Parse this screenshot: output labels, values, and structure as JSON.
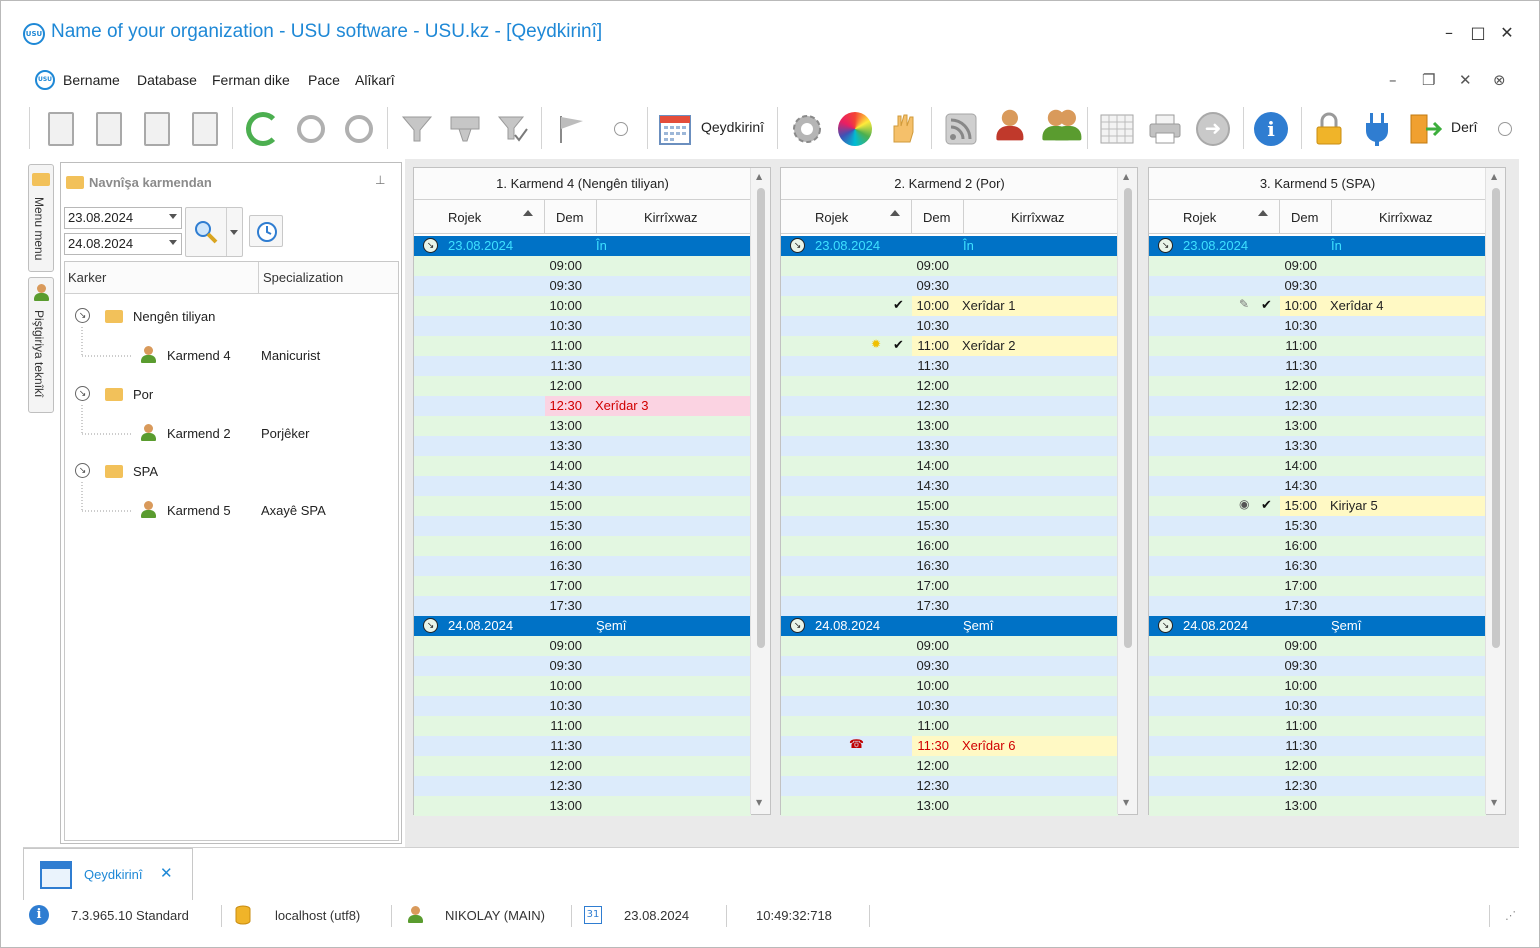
{
  "window": {
    "title": "Name of your organization - USU software - USU.kz - [Qeydkirinî]",
    "logo_text": "USU",
    "controls": [
      "–",
      "□",
      "✕"
    ]
  },
  "menu": {
    "items": [
      "Bername",
      "Database",
      "Ferman dike",
      "Pace",
      "Alîkarî"
    ],
    "mdi_controls": [
      "–",
      "❐",
      "✕",
      "⊗"
    ]
  },
  "toolbar": {
    "calendar_label": "Qeydkirinî",
    "exit_label": "Derî"
  },
  "side_tabs": [
    "Menu menu",
    "Piştgiriya teknîkî"
  ],
  "employee_panel": {
    "title": "Navnîşa karmendan",
    "date_from": "23.08.2024",
    "date_to": "24.08.2024",
    "columns": [
      "Karker",
      "Specialization"
    ],
    "groups": [
      {
        "name": "Nengên tiliyan",
        "employees": [
          {
            "name": "Karmend 4",
            "spec": "Manicurist"
          }
        ]
      },
      {
        "name": "Por",
        "employees": [
          {
            "name": "Karmend 2",
            "spec": "Porjêker"
          }
        ]
      },
      {
        "name": "SPA",
        "employees": [
          {
            "name": "Karmend 5",
            "spec": "Axayê SPA"
          }
        ]
      }
    ]
  },
  "schedule": {
    "headers": [
      "Rojek",
      "Dem",
      "Kirrîxwaz"
    ],
    "columns": [
      {
        "title": "1. Karmend 4 (Nengên tiliyan)",
        "rows": [
          {
            "type": "day",
            "date": "23.08.2024",
            "day": "În"
          },
          {
            "time": "09:00"
          },
          {
            "time": "09:30"
          },
          {
            "time": "10:00"
          },
          {
            "time": "10:30"
          },
          {
            "time": "11:00"
          },
          {
            "time": "11:30"
          },
          {
            "time": "12:00"
          },
          {
            "time": "12:30",
            "client": "Xerîdar 3",
            "style": "pink"
          },
          {
            "time": "13:00"
          },
          {
            "time": "13:30"
          },
          {
            "time": "14:00"
          },
          {
            "time": "14:30"
          },
          {
            "time": "15:00"
          },
          {
            "time": "15:30"
          },
          {
            "time": "16:00"
          },
          {
            "time": "16:30"
          },
          {
            "time": "17:00"
          },
          {
            "time": "17:30"
          },
          {
            "type": "day",
            "date": "24.08.2024",
            "day": "Şemî"
          },
          {
            "time": "09:00"
          },
          {
            "time": "09:30"
          },
          {
            "time": "10:00"
          },
          {
            "time": "10:30"
          },
          {
            "time": "11:00"
          },
          {
            "time": "11:30"
          },
          {
            "time": "12:00"
          },
          {
            "time": "12:30"
          },
          {
            "time": "13:00"
          }
        ]
      },
      {
        "title": "2. Karmend 2 (Por)",
        "rows": [
          {
            "type": "day",
            "date": "23.08.2024",
            "day": "În"
          },
          {
            "time": "09:00"
          },
          {
            "time": "09:30"
          },
          {
            "time": "10:00",
            "client": "Xerîdar 1",
            "style": "yellow",
            "check": true
          },
          {
            "time": "10:30"
          },
          {
            "time": "11:00",
            "client": "Xerîdar 2",
            "style": "yellow",
            "check": true,
            "marker": "star"
          },
          {
            "time": "11:30"
          },
          {
            "time": "12:00"
          },
          {
            "time": "12:30"
          },
          {
            "time": "13:00"
          },
          {
            "time": "13:30"
          },
          {
            "time": "14:00"
          },
          {
            "time": "14:30"
          },
          {
            "time": "15:00"
          },
          {
            "time": "15:30"
          },
          {
            "time": "16:00"
          },
          {
            "time": "16:30"
          },
          {
            "time": "17:00"
          },
          {
            "time": "17:30"
          },
          {
            "type": "day",
            "date": "24.08.2024",
            "day": "Şemî"
          },
          {
            "time": "09:00"
          },
          {
            "time": "09:30"
          },
          {
            "time": "10:00"
          },
          {
            "time": "10:30"
          },
          {
            "time": "11:00"
          },
          {
            "time": "11:30",
            "client": "Xerîdar 6",
            "style": "yellow-red",
            "marker": "phone"
          },
          {
            "time": "12:00"
          },
          {
            "time": "12:30"
          },
          {
            "time": "13:00"
          }
        ]
      },
      {
        "title": "3. Karmend 5 (SPA)",
        "rows": [
          {
            "type": "day",
            "date": "23.08.2024",
            "day": "În"
          },
          {
            "time": "09:00"
          },
          {
            "time": "09:30"
          },
          {
            "time": "10:00",
            "client": "Xerîdar 4",
            "style": "yellow",
            "check": true,
            "marker": "syringe"
          },
          {
            "time": "10:30"
          },
          {
            "time": "11:00"
          },
          {
            "time": "11:30"
          },
          {
            "time": "12:00"
          },
          {
            "time": "12:30"
          },
          {
            "time": "13:00"
          },
          {
            "time": "13:30"
          },
          {
            "time": "14:00"
          },
          {
            "time": "14:30"
          },
          {
            "time": "15:00",
            "client": "Kiriyar 5",
            "style": "yellow",
            "check": true,
            "marker": "eye"
          },
          {
            "time": "15:30"
          },
          {
            "time": "16:00"
          },
          {
            "time": "16:30"
          },
          {
            "time": "17:00"
          },
          {
            "time": "17:30"
          },
          {
            "type": "day",
            "date": "24.08.2024",
            "day": "Şemî"
          },
          {
            "time": "09:00"
          },
          {
            "time": "09:30"
          },
          {
            "time": "10:00"
          },
          {
            "time": "10:30"
          },
          {
            "time": "11:00"
          },
          {
            "time": "11:30"
          },
          {
            "time": "12:00"
          },
          {
            "time": "12:30"
          },
          {
            "time": "13:00"
          }
        ]
      }
    ]
  },
  "doc_tab": {
    "label": "Qeydkirinî",
    "close": "✕"
  },
  "statusbar": {
    "version": "7.3.965.10 Standard",
    "db": "localhost (utf8)",
    "user": "NIKOLAY (MAIN)",
    "calendar_day": "31",
    "date": "23.08.2024",
    "time": "10:49:32:718"
  },
  "colors": {
    "accent": "#1e88d6",
    "day_row": "#0072c6",
    "even_row": "#e3f7e1",
    "odd_row": "#dcebfb",
    "booked": "#fff9c4",
    "pink": "#fbd3e2"
  }
}
